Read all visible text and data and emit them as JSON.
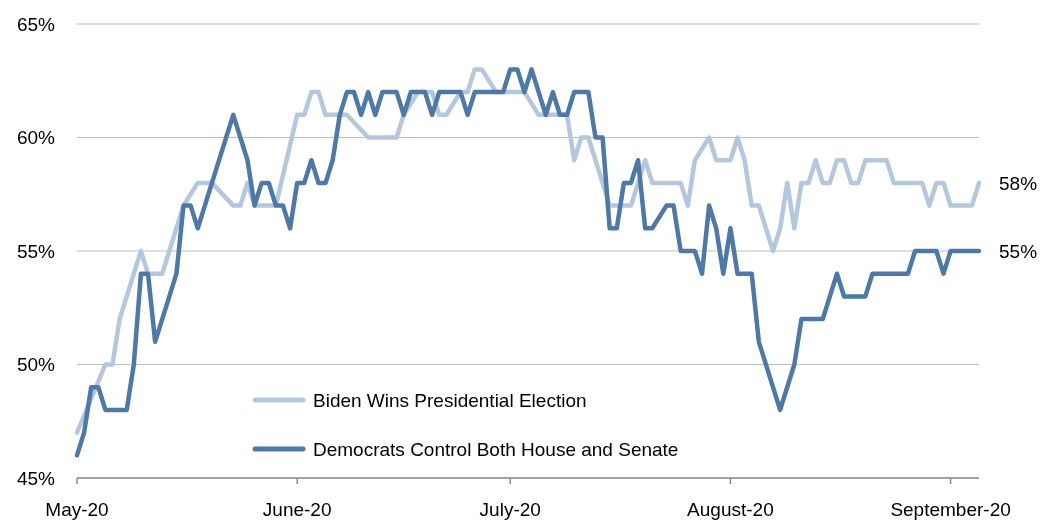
{
  "chart_data": {
    "type": "line",
    "xlim": [
      "2020-05-01",
      "2020-09-05"
    ],
    "xticks": [
      {
        "value": "2020-05-01",
        "label": "May-20"
      },
      {
        "value": "2020-06-01",
        "label": "June-20"
      },
      {
        "value": "2020-07-01",
        "label": "July-20"
      },
      {
        "value": "2020-08-01",
        "label": "August-20"
      },
      {
        "value": "2020-09-01",
        "label": "September-20"
      }
    ],
    "ylim": [
      45,
      65
    ],
    "yticks": [
      {
        "value": 45,
        "label": "45%"
      },
      {
        "value": 50,
        "label": "50%"
      },
      {
        "value": 55,
        "label": "55%"
      },
      {
        "value": 60,
        "label": "60%"
      },
      {
        "value": 65,
        "label": "65%"
      }
    ],
    "grid": "y",
    "legend": "bottom",
    "line_style": "solid",
    "marker": "none",
    "annotations": [
      {
        "text": "58%",
        "x": "2020-09-05",
        "y": 58
      },
      {
        "text": "55%",
        "x": "2020-09-05",
        "y": 55
      }
    ],
    "series": [
      {
        "name": "Biden Wins Presidential Election",
        "color": "#b4c7dc",
        "x": [
          "2020-05-01",
          "2020-05-05",
          "2020-05-06",
          "2020-05-07",
          "2020-05-10",
          "2020-05-11",
          "2020-05-13",
          "2020-05-16",
          "2020-05-18",
          "2020-05-20",
          "2020-05-23",
          "2020-05-24",
          "2020-05-25",
          "2020-05-26",
          "2020-05-29",
          "2020-06-01",
          "2020-06-02",
          "2020-06-03",
          "2020-06-04",
          "2020-06-05",
          "2020-06-08",
          "2020-06-11",
          "2020-06-15",
          "2020-06-16",
          "2020-06-18",
          "2020-06-20",
          "2020-06-21",
          "2020-06-22",
          "2020-06-24",
          "2020-06-25",
          "2020-06-26",
          "2020-06-27",
          "2020-06-29",
          "2020-07-03",
          "2020-07-05",
          "2020-07-09",
          "2020-07-10",
          "2020-07-11",
          "2020-07-12",
          "2020-07-15",
          "2020-07-18",
          "2020-07-20",
          "2020-07-21",
          "2020-07-25",
          "2020-07-26",
          "2020-07-27",
          "2020-07-29",
          "2020-07-30",
          "2020-08-01",
          "2020-08-02",
          "2020-08-03",
          "2020-08-04",
          "2020-08-05",
          "2020-08-07",
          "2020-08-08",
          "2020-08-09",
          "2020-08-10",
          "2020-08-11",
          "2020-08-12",
          "2020-08-13",
          "2020-08-14",
          "2020-08-15",
          "2020-08-16",
          "2020-08-17",
          "2020-08-18",
          "2020-08-19",
          "2020-08-20",
          "2020-08-23",
          "2020-08-24",
          "2020-08-28",
          "2020-08-29",
          "2020-08-30",
          "2020-08-31",
          "2020-09-01",
          "2020-09-04",
          "2020-09-05"
        ],
        "values": [
          47,
          50,
          50,
          52,
          55,
          54,
          54,
          57,
          58,
          58,
          57,
          57,
          58,
          57,
          57,
          61,
          61,
          62,
          62,
          61,
          61,
          60,
          60,
          61,
          62,
          62,
          61,
          61,
          62,
          62,
          63,
          63,
          62,
          62,
          61,
          61,
          59,
          60,
          60,
          57,
          57,
          59,
          58,
          58,
          57,
          59,
          60,
          59,
          59,
          60,
          59,
          57,
          57,
          55,
          56,
          58,
          56,
          58,
          58,
          59,
          58,
          58,
          59,
          59,
          58,
          58,
          59,
          59,
          58,
          58,
          57,
          58,
          58,
          57,
          57,
          58
        ]
      },
      {
        "name": "Democrats Control Both House and Senate",
        "color": "#4e78a5",
        "x": [
          "2020-05-01",
          "2020-05-02",
          "2020-05-03",
          "2020-05-04",
          "2020-05-05",
          "2020-05-08",
          "2020-05-09",
          "2020-05-10",
          "2020-05-11",
          "2020-05-12",
          "2020-05-15",
          "2020-05-16",
          "2020-05-17",
          "2020-05-18",
          "2020-05-21",
          "2020-05-23",
          "2020-05-25",
          "2020-05-26",
          "2020-05-27",
          "2020-05-28",
          "2020-05-29",
          "2020-05-30",
          "2020-05-31",
          "2020-06-01",
          "2020-06-02",
          "2020-06-03",
          "2020-06-04",
          "2020-06-05",
          "2020-06-06",
          "2020-06-07",
          "2020-06-08",
          "2020-06-09",
          "2020-06-10",
          "2020-06-11",
          "2020-06-12",
          "2020-06-13",
          "2020-06-15",
          "2020-06-16",
          "2020-06-17",
          "2020-06-19",
          "2020-06-20",
          "2020-06-21",
          "2020-06-24",
          "2020-06-25",
          "2020-06-26",
          "2020-06-30",
          "2020-07-01",
          "2020-07-02",
          "2020-07-03",
          "2020-07-04",
          "2020-07-06",
          "2020-07-07",
          "2020-07-08",
          "2020-07-09",
          "2020-07-10",
          "2020-07-12",
          "2020-07-13",
          "2020-07-14",
          "2020-07-15",
          "2020-07-16",
          "2020-07-17",
          "2020-07-18",
          "2020-07-19",
          "2020-07-20",
          "2020-07-21",
          "2020-07-23",
          "2020-07-24",
          "2020-07-25",
          "2020-07-27",
          "2020-07-28",
          "2020-07-29",
          "2020-07-30",
          "2020-07-31",
          "2020-08-01",
          "2020-08-02",
          "2020-08-04",
          "2020-08-05",
          "2020-08-08",
          "2020-08-10",
          "2020-08-11",
          "2020-08-14",
          "2020-08-16",
          "2020-08-17",
          "2020-08-20",
          "2020-08-21",
          "2020-08-26",
          "2020-08-27",
          "2020-08-30",
          "2020-08-31",
          "2020-09-01",
          "2020-09-05"
        ],
        "values": [
          46,
          47,
          49,
          49,
          48,
          48,
          50,
          54,
          54,
          51,
          54,
          57,
          57,
          56,
          59,
          61,
          59,
          57,
          58,
          58,
          57,
          57,
          56,
          58,
          58,
          59,
          58,
          58,
          59,
          61,
          62,
          62,
          61,
          62,
          61,
          62,
          62,
          61,
          62,
          62,
          61,
          62,
          62,
          61,
          62,
          62,
          63,
          63,
          62,
          63,
          61,
          62,
          61,
          61,
          62,
          62,
          60,
          60,
          56,
          56,
          58,
          58,
          59,
          56,
          56,
          57,
          57,
          55,
          55,
          54,
          57,
          56,
          54,
          56,
          54,
          54,
          51,
          48,
          50,
          52,
          52,
          54,
          53,
          53,
          54,
          54,
          55,
          55,
          54,
          55,
          55
        ]
      }
    ]
  }
}
